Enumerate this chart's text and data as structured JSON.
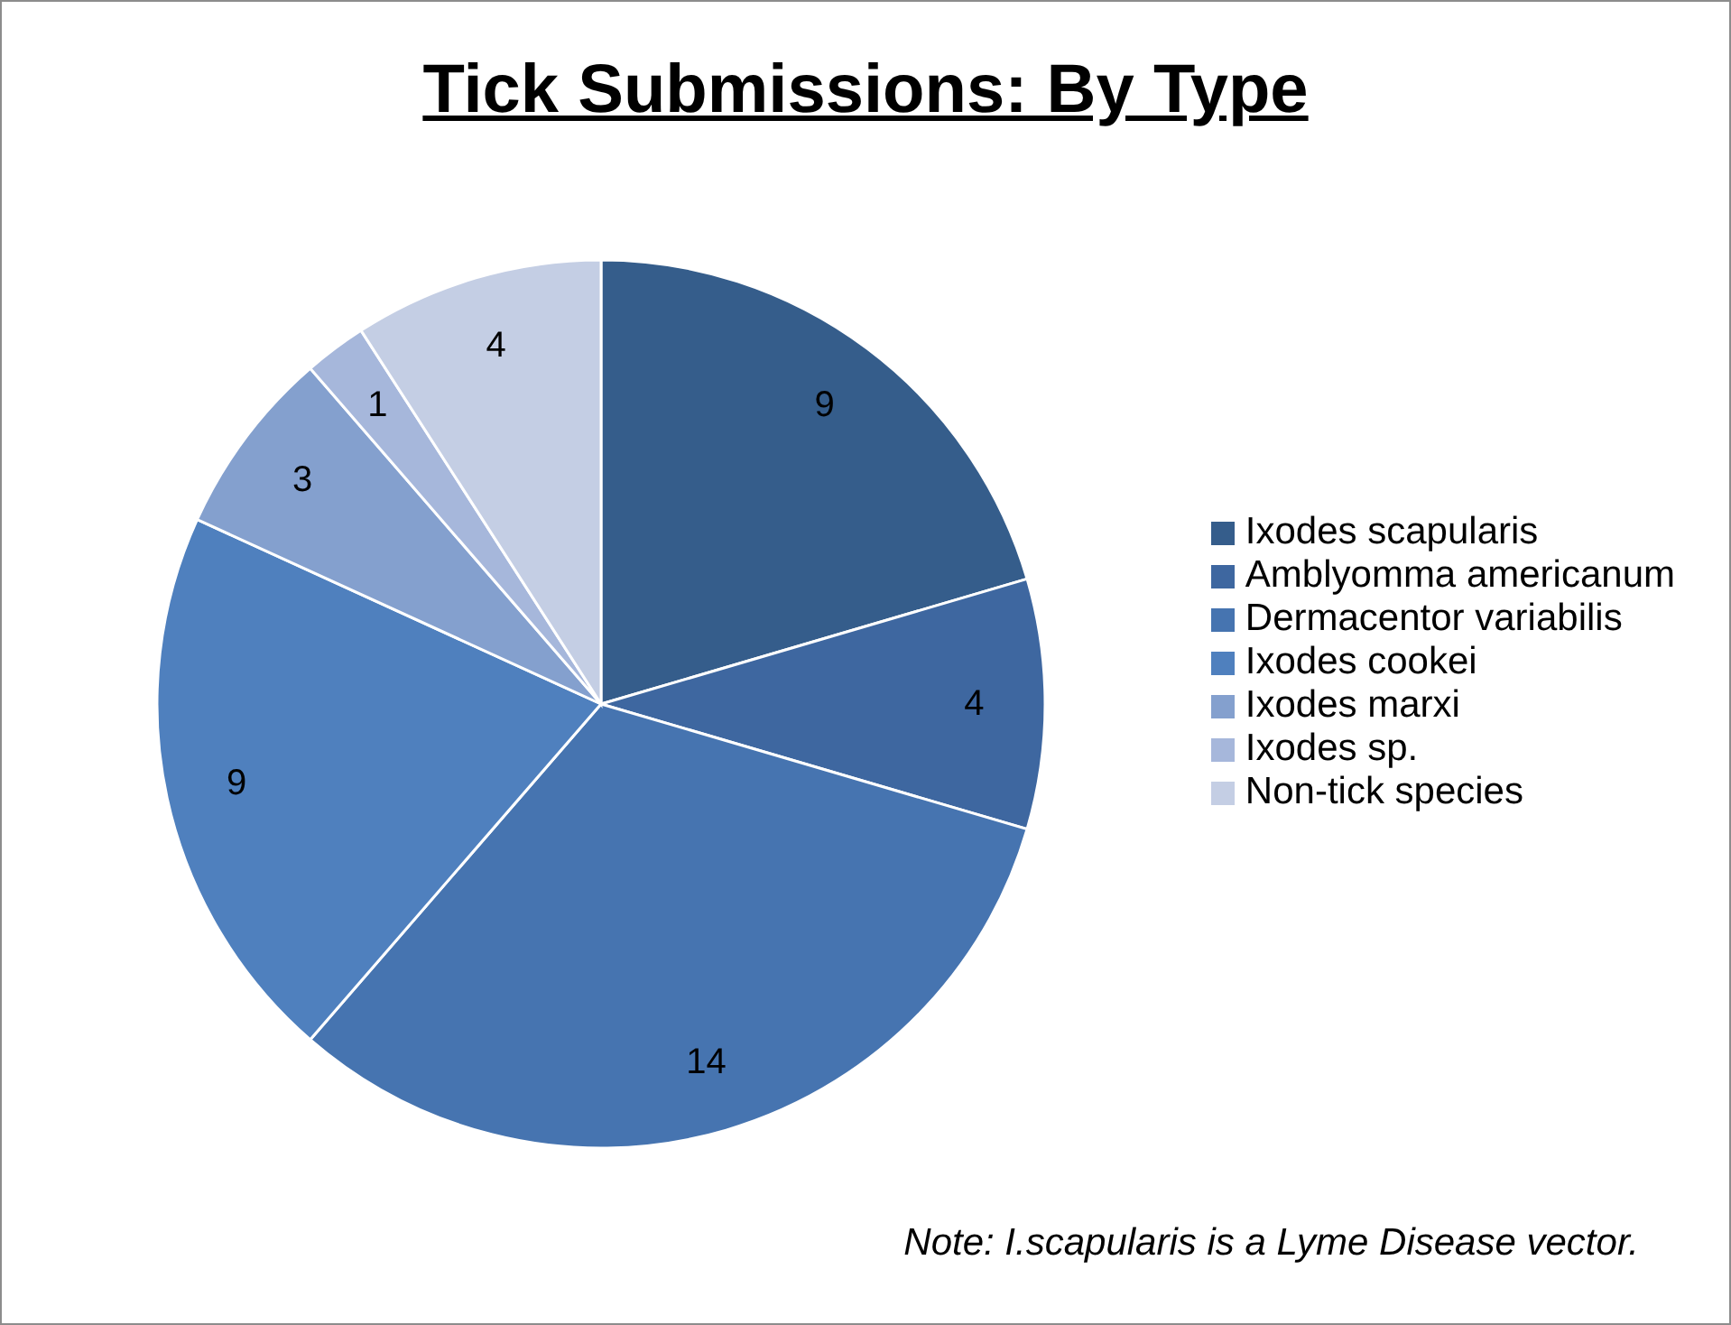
{
  "chart_data": {
    "type": "pie",
    "title": "Tick Submissions: By Type",
    "categories": [
      "Ixodes scapularis",
      "Amblyomma americanum",
      "Dermacentor variabilis",
      "Ixodes cookei",
      "Ixodes marxi",
      "Ixodes sp.",
      "Non-tick species"
    ],
    "values": [
      9,
      4,
      14,
      9,
      3,
      1,
      4
    ],
    "colors": [
      "#355d8b",
      "#3e67a0",
      "#4674b0",
      "#4f80be",
      "#84a0ce",
      "#a6b7db",
      "#c4cee4"
    ],
    "data_labels": true,
    "legend": "right",
    "annotations": [
      "Note: I.scapularis is a Lyme Disease vector."
    ]
  }
}
